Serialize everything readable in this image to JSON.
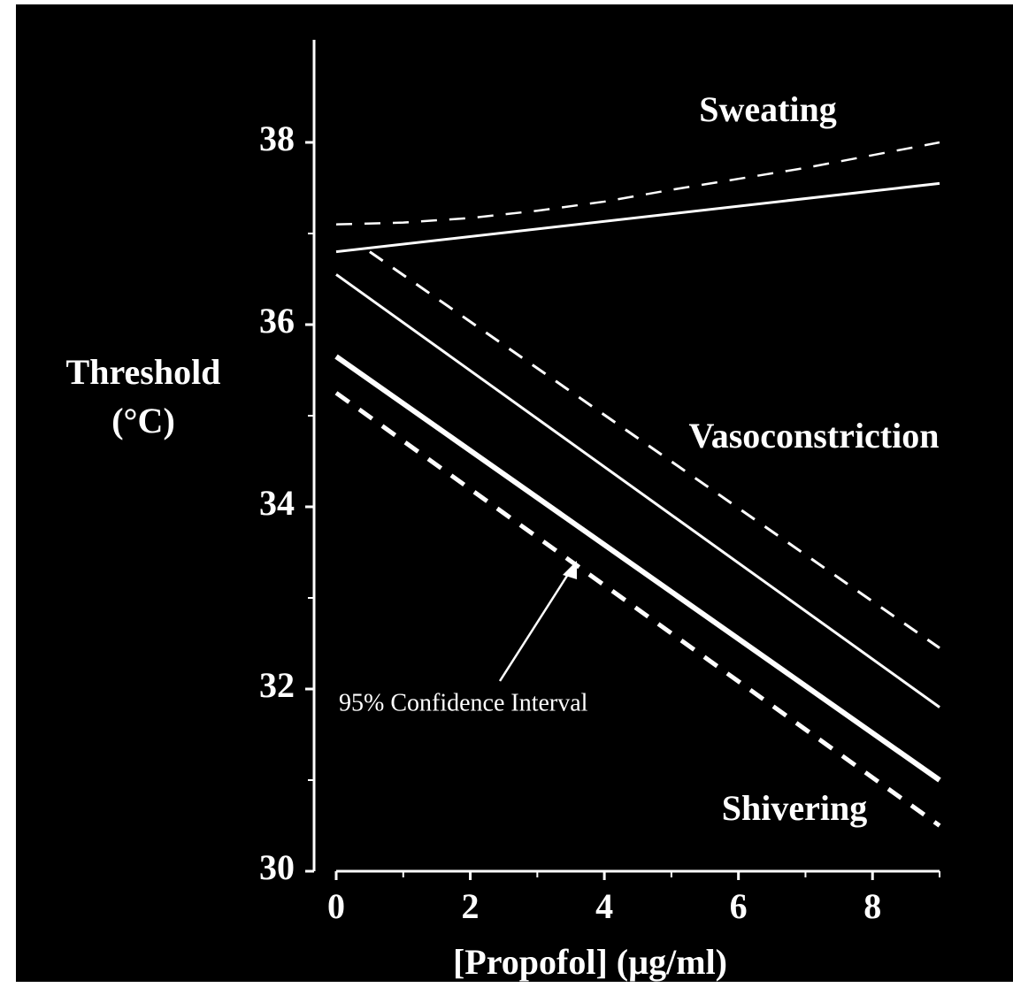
{
  "chart_data": {
    "type": "line",
    "xlabel": "[Propofol] (µg/ml)",
    "ylabel": [
      "Threshold",
      "(°C)"
    ],
    "xlim": [
      0,
      9
    ],
    "ylim": [
      30,
      39
    ],
    "xticks": [
      0,
      2,
      4,
      6,
      8
    ],
    "xminorticks": [
      1,
      3,
      5,
      7,
      9
    ],
    "yticks": [
      30,
      32,
      34,
      36,
      38
    ],
    "yminorticks": [
      31,
      33,
      35,
      37
    ],
    "color": "#ffffff",
    "series": [
      {
        "x": [
          0,
          9
        ],
        "values": [
          36.8,
          37.55
        ],
        "dash": false,
        "width": 3
      },
      {
        "x": [
          0,
          1,
          2,
          3,
          4,
          5,
          6,
          7,
          8,
          9
        ],
        "values": [
          37.1,
          37.12,
          37.17,
          37.25,
          37.35,
          37.48,
          37.6,
          37.72,
          37.86,
          38.0
        ],
        "dash": true,
        "width": 2.5
      },
      {
        "x": [
          0,
          9
        ],
        "values": [
          36.55,
          31.8
        ],
        "dash": false,
        "width": 3
      },
      {
        "x": [
          0.5,
          9
        ],
        "values": [
          36.8,
          32.45
        ],
        "dash": true,
        "width": 3
      },
      {
        "x": [
          0,
          9
        ],
        "values": [
          35.65,
          31.0
        ],
        "dash": false,
        "width": 6
      },
      {
        "x": [
          0,
          9
        ],
        "values": [
          35.25,
          30.5
        ],
        "dash": true,
        "width": 5
      }
    ],
    "annotations": [
      "Sweating",
      "Vasoconstriction",
      "Shivering",
      "95% Confidence Interval"
    ]
  }
}
